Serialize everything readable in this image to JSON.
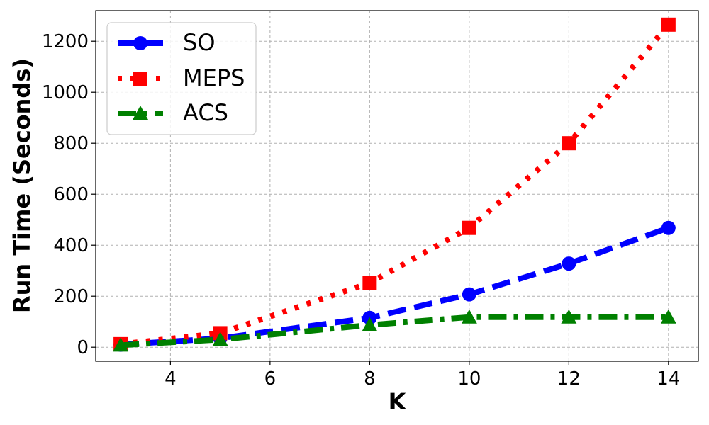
{
  "chart_data": {
    "type": "line",
    "xlabel": "K",
    "ylabel": "Run Time (Seconds)",
    "xlim": [
      2.5,
      14.6
    ],
    "ylim": [
      -55,
      1320
    ],
    "xticks": [
      4,
      6,
      8,
      10,
      12,
      14
    ],
    "yticks": [
      0,
      200,
      400,
      600,
      800,
      1000,
      1200
    ],
    "grid": true,
    "legend_position": "top-left",
    "series": [
      {
        "name": "SO",
        "color": "#0000ff",
        "linestyle": "dashed",
        "marker": "circle",
        "x": [
          3,
          5,
          8,
          10,
          12,
          14
        ],
        "y": [
          10,
          35,
          115,
          207,
          328,
          468
        ]
      },
      {
        "name": "MEPS",
        "color": "#ff0000",
        "linestyle": "dotted",
        "marker": "square",
        "x": [
          3,
          5,
          8,
          10,
          12,
          14
        ],
        "y": [
          12,
          55,
          252,
          468,
          800,
          1265
        ]
      },
      {
        "name": "ACS",
        "color": "#008000",
        "linestyle": "dashdot",
        "marker": "triangle",
        "x": [
          3,
          5,
          8,
          10,
          12,
          14
        ],
        "y": [
          8,
          30,
          87,
          118,
          118,
          118
        ]
      }
    ]
  }
}
